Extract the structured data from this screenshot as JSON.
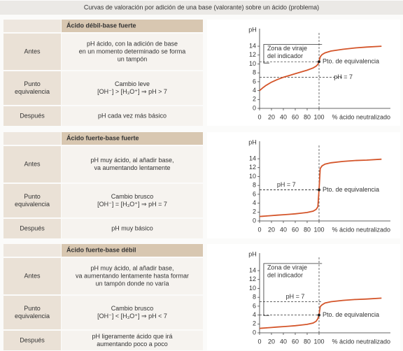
{
  "title": "Curvas de valoración por adición de una base (valorante) sobre un ácido (problema)",
  "panels": [
    {
      "heading": "Ácido débil-base fuerte",
      "rows": [
        {
          "label": [
            "Antes"
          ],
          "text": [
            "pH ácido, con la adición de base",
            "en un momento determinado se forma",
            "un tampón"
          ]
        },
        {
          "label": [
            "Punto",
            "equivalencia"
          ],
          "text": [
            "Cambio leve",
            "[OH⁻] > [H₃O⁺] ⇒ pH > 7"
          ]
        },
        {
          "label": [
            "Después"
          ],
          "text": [
            "pH cada vez más básico"
          ]
        }
      ]
    },
    {
      "heading": "Ácido fuerte-base fuerte",
      "rows": [
        {
          "label": [
            "Antes"
          ],
          "text": [
            "pH muy ácido, al añadir base,",
            "va aumentando lentamente"
          ]
        },
        {
          "label": [
            "Punto",
            "equivalencia"
          ],
          "text": [
            "Cambio brusco",
            "[OH⁻] = [H₃O⁺] ⇒ pH = 7"
          ]
        },
        {
          "label": [
            "Después"
          ],
          "text": [
            "pH muy básico"
          ]
        }
      ]
    },
    {
      "heading": "Ácido fuerte-base débil",
      "rows": [
        {
          "label": [
            "Antes"
          ],
          "text": [
            "pH muy ácido, al añadir base,",
            "va aumentando lentamente hasta formar",
            "un tampón donde no varía"
          ]
        },
        {
          "label": [
            "Punto",
            "equivalencia"
          ],
          "text": [
            "Cambio brusco",
            "[OH⁻] < [H₃O⁺] ⇒ pH < 7"
          ]
        },
        {
          "label": [
            "Después"
          ],
          "text": [
            "pH ligeramente ácido que irá",
            "aumentando poco a poco"
          ]
        }
      ]
    }
  ],
  "chart_data": [
    {
      "type": "line",
      "y_label": "pH",
      "x_label": "% ácido neutralizado",
      "color": "#d4552a",
      "xlim": [
        0,
        220
      ],
      "xticks": [
        0,
        20,
        40,
        60,
        80,
        100
      ],
      "ylim": [
        0,
        17
      ],
      "yticks": [
        0,
        2,
        4,
        6,
        8,
        10,
        12,
        14
      ],
      "x": [
        0,
        5,
        10,
        20,
        30,
        40,
        50,
        60,
        70,
        80,
        90,
        95,
        98,
        100,
        102,
        105,
        110,
        120,
        140,
        160,
        180,
        205
      ],
      "values": [
        4,
        4.6,
        5.1,
        5.9,
        6.5,
        7,
        7.4,
        7.8,
        8.2,
        8.6,
        9.1,
        9.5,
        9.9,
        10.5,
        11.6,
        12.1,
        12.5,
        12.9,
        13.3,
        13.6,
        13.8,
        14
      ],
      "equivalence": {
        "label": "Pto. de equivalencia",
        "x": 100,
        "y": 10.5
      },
      "neutral_line": {
        "label": "pH = 7",
        "y": 7
      },
      "indicator_zone": {
        "label": [
          "Zona de viraje",
          "del indicador"
        ],
        "range": [
          10.2,
          14.4
        ]
      }
    },
    {
      "type": "line",
      "y_label": "pH",
      "x_label": "% ácido neutralizado",
      "color": "#d4552a",
      "xlim": [
        0,
        220
      ],
      "xticks": [
        0,
        20,
        40,
        60,
        80,
        100
      ],
      "ylim": [
        0,
        17
      ],
      "yticks": [
        0,
        2,
        4,
        6,
        8,
        10,
        12,
        14
      ],
      "x": [
        0,
        5,
        10,
        20,
        30,
        40,
        50,
        60,
        70,
        80,
        90,
        95,
        98,
        100,
        102,
        105,
        110,
        120,
        140,
        160,
        180,
        205
      ],
      "values": [
        1,
        1.05,
        1.1,
        1.2,
        1.3,
        1.4,
        1.5,
        1.6,
        1.75,
        1.9,
        2.2,
        2.6,
        3.2,
        7,
        11.8,
        12.4,
        12.8,
        13.1,
        13.4,
        13.6,
        13.7,
        13.9
      ],
      "equivalence": {
        "label": "Pto. de equivalencia",
        "x": 100,
        "y": 7
      },
      "neutral_line": {
        "label": "pH = 7",
        "y": 7
      }
    },
    {
      "type": "line",
      "y_label": "pH",
      "x_label": "% ácido neutralizado",
      "color": "#d4552a",
      "xlim": [
        0,
        220
      ],
      "xticks": [
        0,
        20,
        40,
        60,
        80,
        100
      ],
      "ylim": [
        0,
        17
      ],
      "yticks": [
        0,
        2,
        4,
        6,
        8,
        10,
        12,
        14
      ],
      "x": [
        0,
        5,
        10,
        20,
        30,
        40,
        50,
        60,
        70,
        80,
        90,
        95,
        98,
        100,
        102,
        105,
        110,
        120,
        140,
        160,
        180,
        205
      ],
      "values": [
        1,
        1.05,
        1.1,
        1.2,
        1.3,
        1.4,
        1.5,
        1.6,
        1.75,
        1.9,
        2.2,
        2.6,
        3.2,
        4,
        5.9,
        6.3,
        6.7,
        7,
        7.3,
        7.5,
        7.6,
        7.8
      ],
      "equivalence": {
        "label": "Pto. de equivalencia",
        "x": 100,
        "y": 4
      },
      "neutral_line": {
        "label": "pH = 7",
        "y": 7
      },
      "indicator_zone": {
        "label": [
          "Zona de viraje",
          "del indicador"
        ],
        "range": [
          3.9,
          15.6
        ]
      }
    }
  ]
}
